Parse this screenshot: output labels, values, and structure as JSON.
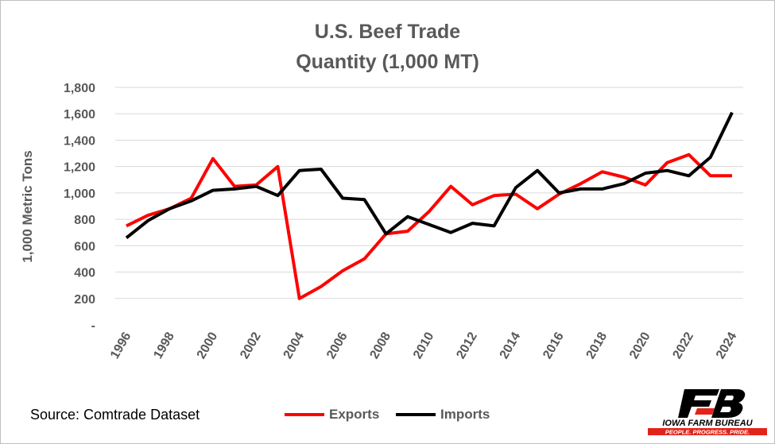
{
  "chart_data": {
    "type": "line",
    "title": "U.S. Beef Trade",
    "subtitle": "Quantity (1,000 MT)",
    "ylabel": "1,000 Metric Tons",
    "xlabel": "",
    "ylim": [
      0,
      1800
    ],
    "yticks": [
      0,
      200,
      400,
      600,
      800,
      1000,
      1200,
      1400,
      1600,
      1800
    ],
    "ytick_labels": [
      "-",
      "200",
      "400",
      "600",
      "800",
      "1,000",
      "1,200",
      "1,400",
      "1,600",
      "1,800"
    ],
    "x": [
      1996,
      1997,
      1998,
      1999,
      2000,
      2001,
      2002,
      2003,
      2004,
      2005,
      2006,
      2007,
      2008,
      2009,
      2010,
      2011,
      2012,
      2013,
      2014,
      2015,
      2016,
      2017,
      2018,
      2019,
      2020,
      2021,
      2022,
      2023,
      2024
    ],
    "xtick_labels": [
      "1996",
      "1998",
      "2000",
      "2002",
      "2004",
      "2006",
      "2008",
      "2010",
      "2012",
      "2014",
      "2016",
      "2018",
      "2020",
      "2022",
      "2024"
    ],
    "grid": true,
    "legend_position": "bottom",
    "series": [
      {
        "name": "Exports",
        "color": "#ff0000",
        "values": [
          750,
          830,
          880,
          960,
          1260,
          1050,
          1060,
          1200,
          200,
          290,
          410,
          500,
          690,
          710,
          860,
          1050,
          910,
          980,
          990,
          880,
          990,
          1070,
          1160,
          1120,
          1060,
          1230,
          1290,
          1130,
          1130
        ]
      },
      {
        "name": "Imports",
        "color": "#000000",
        "values": [
          660,
          790,
          880,
          940,
          1020,
          1030,
          1050,
          980,
          1170,
          1180,
          960,
          950,
          690,
          820,
          760,
          700,
          770,
          750,
          1040,
          1170,
          1000,
          1030,
          1030,
          1070,
          1150,
          1170,
          1130,
          1270,
          1610
        ]
      }
    ]
  },
  "footer": {
    "source": "Source: Comtrade Dataset"
  },
  "logo": {
    "line1": "IOWA FARM BUREAU",
    "line2": "PEOPLE. PROGRESS. PRIDE.",
    "colors": {
      "black": "#000000",
      "red": "#e2231a"
    }
  }
}
